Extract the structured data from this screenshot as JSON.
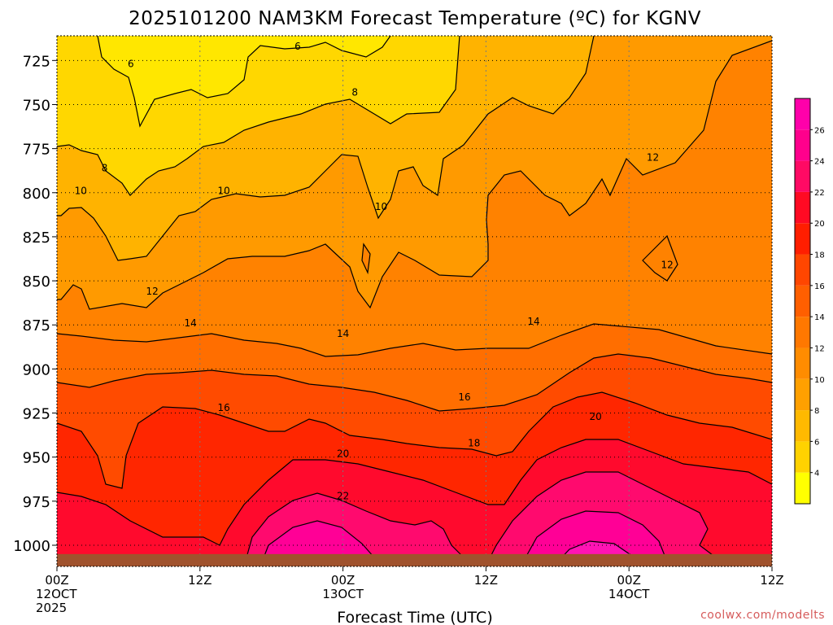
{
  "chart_data": {
    "type": "contour",
    "title": "2025101200 NAM3KM Forecast Temperature (ºC) for KGNV",
    "xlabel": "Forecast Time (UTC)",
    "ylabel": "",
    "y_axis_units": "hPa",
    "y_ticks": [
      "725",
      "750",
      "775",
      "800",
      "825",
      "850",
      "875",
      "900",
      "925",
      "950",
      "975",
      "1000"
    ],
    "ylim": [
      1012,
      711
    ],
    "x_axis_units": "forecast hours from 2025101200",
    "xlim": [
      0,
      60
    ],
    "x_ticks": [
      {
        "hour": 0,
        "line1": "00Z",
        "line2": "12OCT",
        "line3": "2025"
      },
      {
        "hour": 12,
        "line1": "12Z",
        "line2": "",
        "line3": ""
      },
      {
        "hour": 24,
        "line1": "00Z",
        "line2": "13OCT",
        "line3": ""
      },
      {
        "hour": 36,
        "line1": "12Z",
        "line2": "",
        "line3": ""
      },
      {
        "hour": 48,
        "line1": "00Z",
        "line2": "14OCT",
        "line3": ""
      },
      {
        "hour": 60,
        "line1": "12Z",
        "line2": "",
        "line3": ""
      }
    ],
    "grid": true,
    "colorbar": {
      "levels": [
        2,
        4,
        6,
        8,
        10,
        12,
        14,
        16,
        18,
        20,
        22,
        24,
        26,
        28
      ],
      "tick_labels": [
        "4",
        "6",
        "8",
        "10",
        "12",
        "14",
        "16",
        "18",
        "20",
        "22",
        "24",
        "26"
      ],
      "colors": [
        "#ffff00",
        "#ffd200",
        "#ffb900",
        "#ffa000",
        "#ff8c00",
        "#ff7800",
        "#ff5f00",
        "#ff4600",
        "#ff1e00",
        "#ff0a23",
        "#ff0a64",
        "#ff008c",
        "#ff00aa"
      ]
    },
    "contour_labels": [
      {
        "text": "6",
        "hour": 20.2,
        "hpa": 717
      },
      {
        "text": "6",
        "hour": 6.2,
        "hpa": 727
      },
      {
        "text": "8",
        "hour": 25.0,
        "hpa": 743
      },
      {
        "text": "8",
        "hour": 4.0,
        "hpa": 786
      },
      {
        "text": "10",
        "hour": 2.0,
        "hpa": 799
      },
      {
        "text": "10",
        "hour": 14.0,
        "hpa": 799
      },
      {
        "text": "10",
        "hour": 27.2,
        "hpa": 808
      },
      {
        "text": "12",
        "hour": 50.0,
        "hpa": 780
      },
      {
        "text": "12",
        "hour": 51.2,
        "hpa": 841
      },
      {
        "text": "12",
        "hour": 8.0,
        "hpa": 856
      },
      {
        "text": "14",
        "hour": 11.2,
        "hpa": 874
      },
      {
        "text": "14",
        "hour": 24.0,
        "hpa": 880
      },
      {
        "text": "14",
        "hour": 40.0,
        "hpa": 873
      },
      {
        "text": "16",
        "hour": 14.0,
        "hpa": 922
      },
      {
        "text": "16",
        "hour": 34.2,
        "hpa": 916
      },
      {
        "text": "18",
        "hour": 35.0,
        "hpa": 942
      },
      {
        "text": "20",
        "hour": 24.0,
        "hpa": 948
      },
      {
        "text": "20",
        "hour": 45.2,
        "hpa": 927
      },
      {
        "text": "22",
        "hour": 24.0,
        "hpa": 972
      }
    ],
    "terrain_color": "#a0522d",
    "surface_pressure_hpa": 1005
  },
  "credit": "coolwx.com/modelts"
}
